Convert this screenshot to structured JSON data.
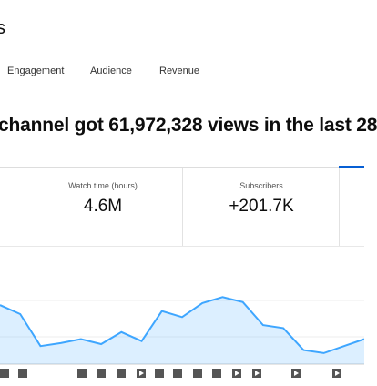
{
  "header": {
    "title": "s"
  },
  "tabs": [
    "Engagement",
    "Audience",
    "Revenue"
  ],
  "headline": "channel got 61,972,328 views in the last 28",
  "cards": [
    {
      "label": "Watch time (hours)",
      "value": "4.6M"
    },
    {
      "label": "Subscribers",
      "value": "+201.7K"
    }
  ],
  "chart_data": {
    "type": "area",
    "color": "#3ea6ff",
    "categories": [
      null,
      null,
      null,
      null,
      null,
      null,
      null,
      null,
      null,
      null,
      null,
      null,
      null,
      null,
      null,
      null,
      null,
      null,
      null
    ],
    "values": [
      59,
      50,
      18,
      21,
      25,
      20,
      32,
      23,
      53,
      47,
      61,
      67,
      62,
      39,
      36,
      14,
      11,
      18,
      25
    ],
    "ylim": [
      0,
      100
    ]
  }
}
